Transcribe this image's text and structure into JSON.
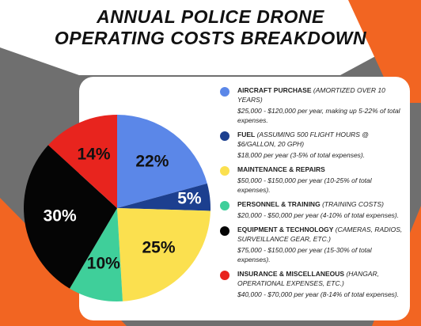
{
  "chart_data": {
    "type": "pie",
    "title": "ANNUAL POLICE DRONE OPERATING COSTS BREAKDOWN",
    "categories": [
      "AIRCRAFT PURCHASE",
      "FUEL",
      "MAINTENANCE & REPAIRS",
      "PERSONNEL & TRAINING",
      "EQUIPMENT & TECHNOLOGY",
      "INSURANCE & MISCELLANEOUS"
    ],
    "notes": [
      "(AMORTIZED OVER 10 YEARS)",
      "(ASSUMING 500 FLIGHT HOURS @ $6/GALLON, 20 GPH)",
      null,
      "(TRAINING COSTS)",
      "(CAMERAS, RADIOS, SURVEILLANCE GEAR, ETC.)",
      "(HANGAR, OPERATIONAL EXPENSES, ETC.)"
    ],
    "descriptions": [
      "$25,000 - $120,000 per year, making up 5-22% of total expenses.",
      "$18,000 per year (3-5% of total expenses).",
      "$50,000 - $150,000 per year (10-25% of total expenses).",
      "$20,000 - $50,000 per year (4-10% of total expenses).",
      "$75,000 - $150,000 per year (15-30% of total expenses).",
      "$40,000 - $70,000 per year (8-14% of total expenses)."
    ],
    "values": [
      22,
      5,
      25,
      10,
      30,
      14
    ],
    "value_labels": [
      "22%",
      "5%",
      "25%",
      "10%",
      "30%",
      "14%"
    ],
    "colors": [
      "#5b87e8",
      "#1c3f8f",
      "#fbe04f",
      "#3fcf9a",
      "#050505",
      "#e8241e"
    ]
  }
}
